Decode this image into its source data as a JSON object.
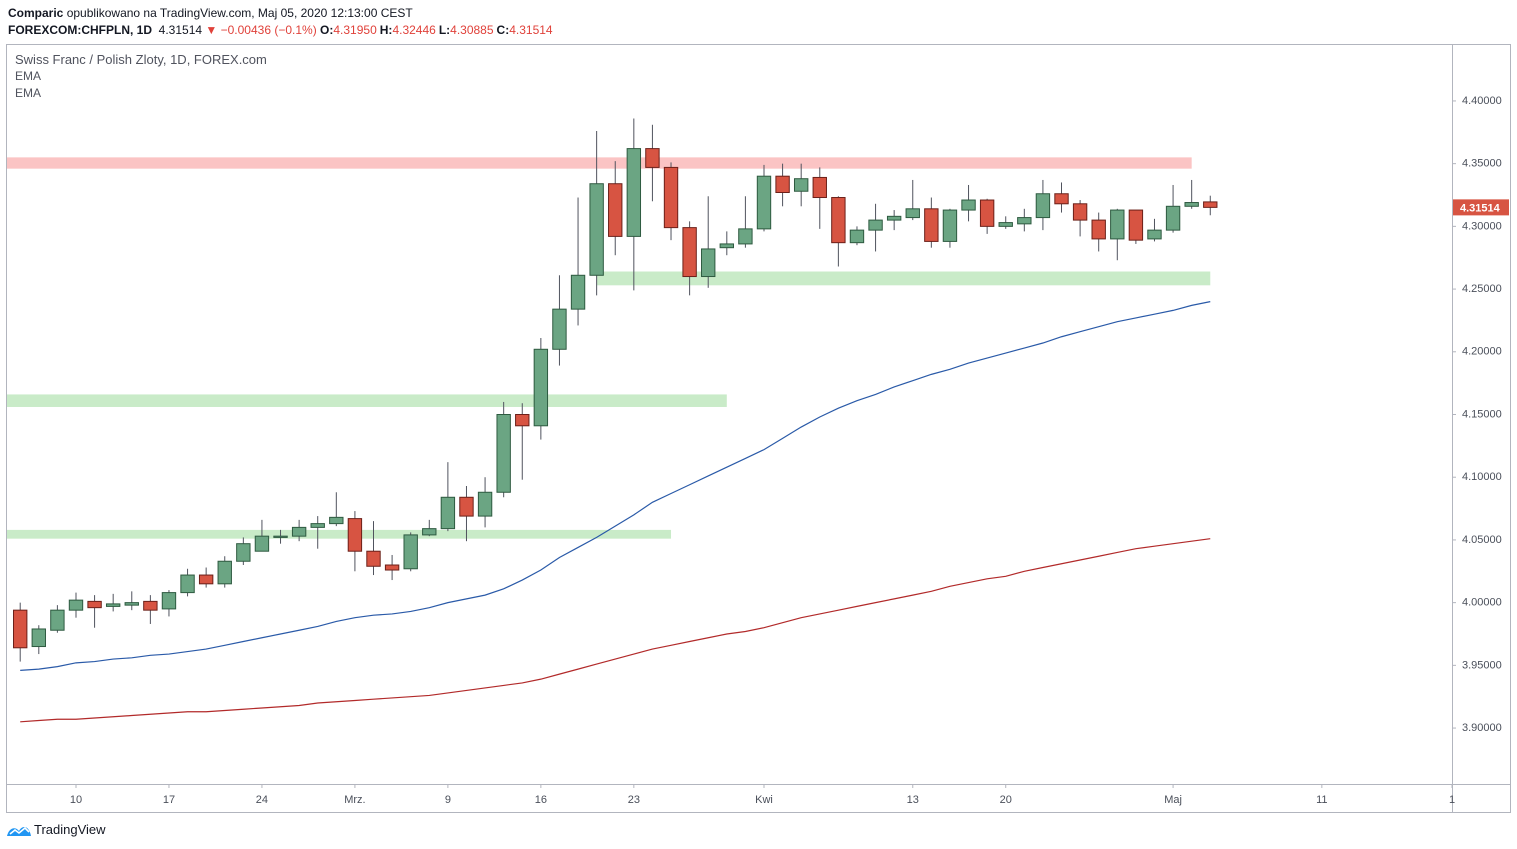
{
  "header": {
    "author": "Comparic",
    "published": "opublikowano na TradingView.com, Maj 05, 2020 12:13:00 CEST",
    "symbol": "FOREXCOM:CHFPLN, 1D",
    "last": "4.31514",
    "change": "▼ −0.00436 (−0.1%)",
    "ohlc": [
      {
        "key": "O:",
        "value": "4.31950"
      },
      {
        "key": "H:",
        "value": "4.32446"
      },
      {
        "key": "L:",
        "value": "4.30885"
      },
      {
        "key": "C:",
        "value": "4.31514"
      }
    ]
  },
  "brand": "TradingView",
  "chart_data": {
    "type": "candlestick",
    "title": "Swiss Franc / Polish Zloty, 1D, FOREX.com",
    "up_color": "#6ba583",
    "down_color": "#d75442",
    "open": [
      3.994,
      3.965,
      3.978,
      3.994,
      4.001,
      3.997,
      3.998,
      4.001,
      3.995,
      4.008,
      4.022,
      4.015,
      4.033,
      4.041,
      4.052,
      4.053,
      4.06,
      4.063,
      4.067,
      4.041,
      4.03,
      4.027,
      4.054,
      4.059,
      4.084,
      4.069,
      4.088,
      4.15,
      4.141,
      4.202,
      4.234,
      4.261,
      4.334,
      4.292,
      4.362,
      4.347,
      4.299,
      4.26,
      4.283,
      4.286,
      4.298,
      4.34,
      4.328,
      4.339,
      4.323,
      4.287,
      4.297,
      4.305,
      4.307,
      4.314,
      4.288,
      4.313,
      4.321,
      4.3,
      4.302,
      4.307,
      4.326,
      4.318,
      4.305,
      4.29,
      4.313,
      4.29,
      4.297,
      4.316,
      4.3195
    ],
    "high": [
      4.0,
      3.982,
      3.998,
      4.008,
      4.006,
      4.007,
      4.009,
      4.006,
      4.01,
      4.027,
      4.028,
      4.037,
      4.052,
      4.066,
      4.058,
      4.066,
      4.069,
      4.088,
      4.073,
      4.065,
      4.038,
      4.056,
      4.066,
      4.112,
      4.093,
      4.1,
      4.16,
      4.159,
      4.211,
      4.261,
      4.323,
      4.376,
      4.352,
      4.386,
      4.381,
      4.351,
      4.304,
      4.324,
      4.296,
      4.324,
      4.349,
      4.35,
      4.35,
      4.347,
      4.324,
      4.3,
      4.318,
      4.313,
      4.337,
      4.323,
      4.314,
      4.333,
      4.322,
      4.308,
      4.314,
      4.337,
      4.335,
      4.321,
      4.311,
      4.314,
      4.313,
      4.306,
      4.333,
      4.337,
      4.32446
    ],
    "low": [
      3.953,
      3.959,
      3.976,
      3.988,
      3.98,
      3.993,
      3.994,
      3.983,
      3.989,
      4.005,
      4.012,
      4.012,
      4.03,
      4.041,
      4.047,
      4.049,
      4.043,
      4.061,
      4.025,
      4.022,
      4.018,
      4.025,
      4.053,
      4.057,
      4.049,
      4.06,
      4.084,
      4.098,
      4.13,
      4.189,
      4.221,
      4.245,
      4.277,
      4.249,
      4.32,
      4.289,
      4.245,
      4.251,
      4.277,
      4.283,
      4.296,
      4.316,
      4.316,
      4.298,
      4.268,
      4.285,
      4.28,
      4.297,
      4.305,
      4.283,
      4.283,
      4.304,
      4.294,
      4.298,
      4.296,
      4.297,
      4.311,
      4.292,
      4.28,
      4.273,
      4.286,
      4.288,
      4.295,
      4.314,
      4.30885
    ],
    "close": [
      3.964,
      3.979,
      3.994,
      4.002,
      3.996,
      3.999,
      4.0,
      3.994,
      4.008,
      4.022,
      4.015,
      4.033,
      4.047,
      4.053,
      4.053,
      4.06,
      4.063,
      4.068,
      4.041,
      4.029,
      4.026,
      4.054,
      4.059,
      4.084,
      4.069,
      4.088,
      4.15,
      4.141,
      4.202,
      4.234,
      4.261,
      4.334,
      4.292,
      4.362,
      4.347,
      4.299,
      4.26,
      4.282,
      4.286,
      4.298,
      4.34,
      4.327,
      4.338,
      4.323,
      4.287,
      4.297,
      4.305,
      4.308,
      4.314,
      4.288,
      4.313,
      4.321,
      4.3,
      4.303,
      4.307,
      4.326,
      4.318,
      4.305,
      4.29,
      4.313,
      4.289,
      4.297,
      4.316,
      4.319,
      4.31514
    ],
    "series": [
      {
        "name": "EMA",
        "color": "#2a5aa8",
        "values": [
          3.946,
          3.947,
          3.949,
          3.952,
          3.953,
          3.955,
          3.956,
          3.958,
          3.959,
          3.961,
          3.963,
          3.966,
          3.969,
          3.972,
          3.975,
          3.978,
          3.981,
          3.985,
          3.988,
          3.99,
          3.991,
          3.993,
          3.996,
          4.0,
          4.003,
          4.006,
          4.011,
          4.018,
          4.026,
          4.036,
          4.044,
          4.052,
          4.061,
          4.07,
          4.08,
          4.087,
          4.094,
          4.101,
          4.108,
          4.115,
          4.122,
          4.131,
          4.14,
          4.148,
          4.155,
          4.161,
          4.166,
          4.172,
          4.177,
          4.182,
          4.186,
          4.191,
          4.195,
          4.199,
          4.203,
          4.207,
          4.212,
          4.216,
          4.22,
          4.224,
          4.227,
          4.23,
          4.233,
          4.237,
          4.24
        ]
      },
      {
        "name": "EMA",
        "color": "#b22a2a",
        "values": [
          3.905,
          3.906,
          3.907,
          3.907,
          3.908,
          3.909,
          3.91,
          3.911,
          3.912,
          3.913,
          3.913,
          3.914,
          3.915,
          3.916,
          3.917,
          3.918,
          3.92,
          3.921,
          3.922,
          3.923,
          3.924,
          3.925,
          3.926,
          3.928,
          3.93,
          3.932,
          3.934,
          3.936,
          3.939,
          3.943,
          3.947,
          3.951,
          3.955,
          3.959,
          3.963,
          3.966,
          3.969,
          3.972,
          3.975,
          3.977,
          3.98,
          3.984,
          3.988,
          3.991,
          3.994,
          3.997,
          4.0,
          4.003,
          4.006,
          4.009,
          4.013,
          4.016,
          4.019,
          4.021,
          4.025,
          4.028,
          4.031,
          4.034,
          4.037,
          4.04,
          4.043,
          4.045,
          4.047,
          4.049,
          4.051
        ]
      }
    ],
    "zones": [
      {
        "color": "#fbc4c4",
        "ylim": [
          4.346,
          4.355
        ],
        "xlim": [
          -0.71,
          63
        ]
      },
      {
        "color": "#c9ebc8",
        "ylim": [
          4.253,
          4.264
        ],
        "xlim": [
          31,
          64
        ]
      },
      {
        "color": "#c9ebc8",
        "ylim": [
          4.156,
          4.166
        ],
        "xlim": [
          -0.71,
          38
        ]
      },
      {
        "color": "#c9ebc8",
        "ylim": [
          4.051,
          4.058
        ],
        "xlim": [
          -0.71,
          35
        ]
      }
    ],
    "last_price_label": "4.31514",
    "xlim": [
      -0.71,
      77
    ],
    "ylim": [
      3.8554,
      4.4446
    ],
    "xticks": [
      {
        "value": 3,
        "label": "10"
      },
      {
        "value": 8,
        "label": "17"
      },
      {
        "value": 13,
        "label": "24"
      },
      {
        "value": 18,
        "label": "Mrz."
      },
      {
        "value": 23,
        "label": "9"
      },
      {
        "value": 28,
        "label": "16"
      },
      {
        "value": 33,
        "label": "23"
      },
      {
        "value": 40,
        "label": "Kwi"
      },
      {
        "value": 48,
        "label": "13"
      },
      {
        "value": 53,
        "label": "20"
      },
      {
        "value": 62,
        "label": "Maj"
      },
      {
        "value": 70,
        "label": "11"
      },
      {
        "value": 77,
        "label": "1"
      }
    ],
    "yticks": [
      {
        "value": 3.9,
        "label": "3.90000"
      },
      {
        "value": 3.95,
        "label": "3.95000"
      },
      {
        "value": 4.0,
        "label": "4.00000"
      },
      {
        "value": 4.05,
        "label": "4.05000"
      },
      {
        "value": 4.1,
        "label": "4.10000"
      },
      {
        "value": 4.15,
        "label": "4.15000"
      },
      {
        "value": 4.2,
        "label": "4.20000"
      },
      {
        "value": 4.25,
        "label": "4.25000"
      },
      {
        "value": 4.3,
        "label": "4.30000"
      },
      {
        "value": 4.35,
        "label": "4.35000"
      },
      {
        "value": 4.4,
        "label": "4.40000"
      }
    ]
  }
}
